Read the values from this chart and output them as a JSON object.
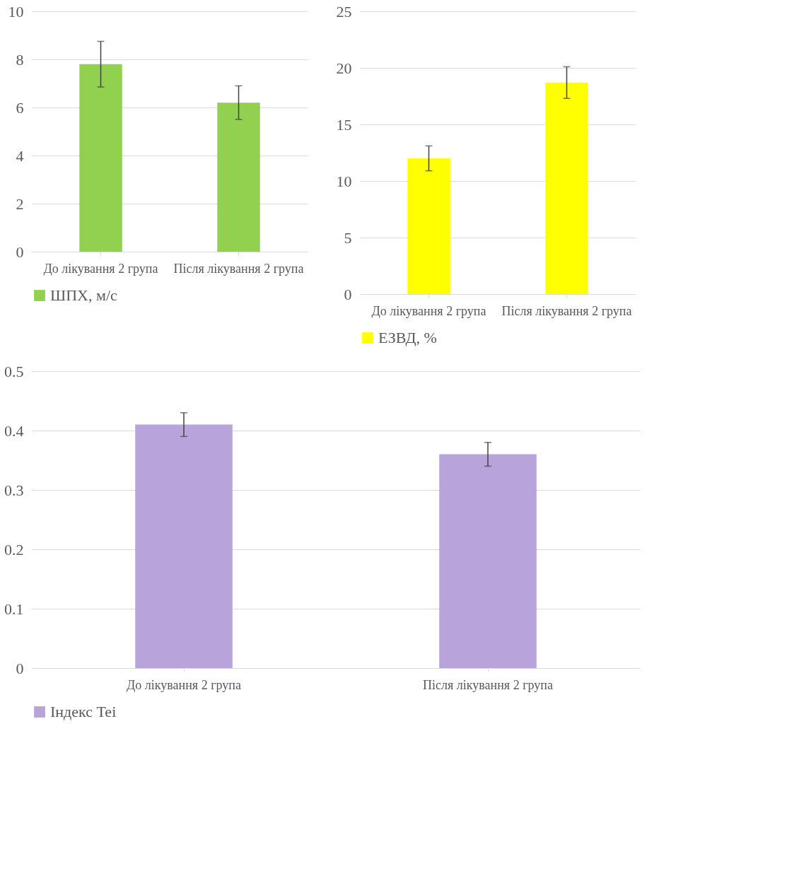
{
  "chart_data": [
    {
      "type": "bar",
      "categories": [
        "До лікування 2 група",
        "Після лікування 2 група"
      ],
      "series": [
        {
          "name": "ШПХ, м/с",
          "color": "#92d050",
          "values": [
            7.8,
            6.2
          ],
          "errors": [
            0.95,
            0.7
          ]
        }
      ],
      "ylim": [
        0,
        10
      ],
      "yticks": [
        0,
        2,
        4,
        6,
        8,
        10
      ],
      "grid": "y",
      "legend": "bottom"
    },
    {
      "type": "bar",
      "categories": [
        "До лікування 2 група",
        "Після лікування 2 група"
      ],
      "series": [
        {
          "name": "ЕЗВД, %",
          "color": "#ffff00",
          "values": [
            12.0,
            18.7
          ],
          "errors": [
            1.1,
            1.4
          ]
        }
      ],
      "ylim": [
        0,
        25
      ],
      "yticks": [
        0,
        5,
        10,
        15,
        20,
        25
      ],
      "grid": "y",
      "legend": "bottom"
    },
    {
      "type": "bar",
      "categories": [
        "До лікування 2 група",
        "Після лікування 2 група"
      ],
      "series": [
        {
          "name": "Індекс Tei",
          "color": "#b9a3db",
          "values": [
            0.41,
            0.36
          ],
          "errors": [
            0.02,
            0.02
          ]
        }
      ],
      "ylim": [
        0,
        0.5
      ],
      "yticks": [
        0,
        0.1,
        0.2,
        0.3,
        0.4,
        0.5
      ],
      "grid": "y",
      "legend": "bottom"
    }
  ]
}
